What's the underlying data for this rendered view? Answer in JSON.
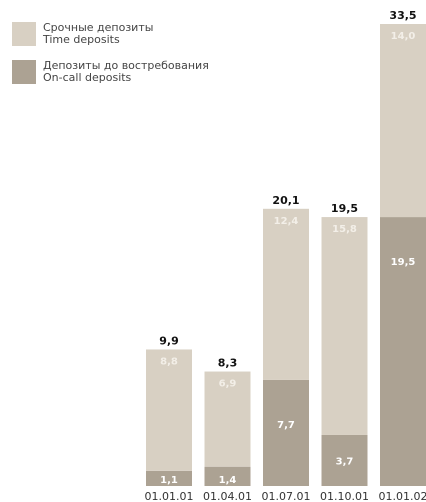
{
  "chart_data": {
    "type": "bar",
    "stacked": true,
    "categories": [
      "01.01.01",
      "01.04.01",
      "01.07.01",
      "01.10.01",
      "01.01.02"
    ],
    "series": [
      {
        "name": "Депозиты до востребования / On-call deposits",
        "values": [
          1.1,
          1.4,
          7.7,
          3.7,
          19.5
        ],
        "color": "#aca293"
      },
      {
        "name": "Срочные депозиты / Time deposits",
        "values": [
          8.8,
          6.9,
          12.4,
          15.8,
          14.0
        ],
        "color": "#d8d0c3"
      }
    ],
    "totals": [
      9.9,
      8.3,
      20.1,
      19.5,
      33.5
    ],
    "segment_labels": {
      "bottom": [
        "1,1",
        "1,4",
        "7,7",
        "3,7",
        "19,5"
      ],
      "top": [
        "8,8",
        "6,9",
        "12,4",
        "15,8",
        "14,0"
      ]
    },
    "total_labels": [
      "9,9",
      "8,3",
      "20,1",
      "19,5",
      "33,5"
    ],
    "ylim": [
      0,
      33.5
    ],
    "grid": false,
    "legend_position": "top-left"
  },
  "legend": {
    "time": {
      "ru": "Срочные депозиты",
      "en": "Time deposits",
      "color": "#d8d0c3"
    },
    "oncall": {
      "ru": "Депозиты до востребования",
      "en": "On-call deposits",
      "color": "#aca293"
    }
  }
}
